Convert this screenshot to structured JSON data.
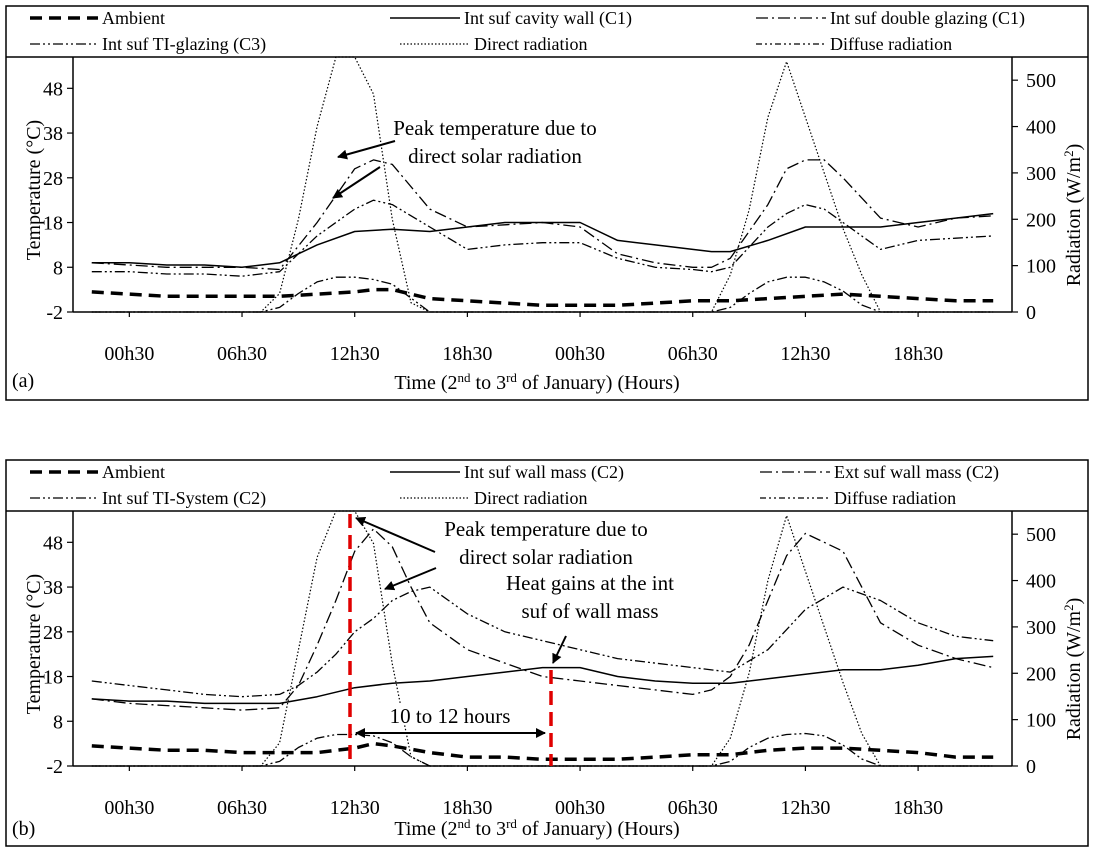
{
  "chart_data": [
    {
      "type": "line",
      "panel_label": "(a)",
      "xlabel_main": "Time (2",
      "xlabel_sup1": "nd",
      "xlabel_mid": " to 3",
      "xlabel_sup2": "rd",
      "xlabel_end": " of January) (Hours)",
      "ylabel_left": "Temperature (°C)",
      "ylabel_right_main": "Radiation (W/m",
      "ylabel_right_sup": "2",
      "ylabel_right_end": ")",
      "x_ticks": [
        "00h30",
        "06h30",
        "12h30",
        "18h30",
        "00h30",
        "06h30",
        "12h30",
        "18h30"
      ],
      "x_tick_hours": [
        0,
        6,
        12,
        18,
        24,
        30,
        36,
        42
      ],
      "xlim": [
        -3,
        47
      ],
      "y_left_ticks": [
        -2,
        8,
        18,
        28,
        38,
        48
      ],
      "y_left_lim": [
        -2,
        55
      ],
      "y_right_ticks": [
        0,
        100,
        200,
        300,
        400,
        500
      ],
      "y_right_lim": [
        0,
        550
      ],
      "legend": [
        "Ambient",
        "Int suf cavity wall (C1)",
        "Int suf double glazing (C1)",
        "Int suf TI-glazing (C3)",
        "Direct radiation",
        "Diffuse radiation"
      ],
      "annotations": {
        "line1": "Peak temperature due to",
        "line2": "direct solar radiation"
      },
      "series": [
        {
          "name": "Ambient",
          "axis": "left",
          "style": "thickdash",
          "x": [
            -2,
            0,
            2,
            4,
            6,
            8,
            10,
            12,
            13,
            14,
            15,
            16,
            18,
            20,
            22,
            24,
            26,
            28,
            30,
            32,
            34,
            36,
            38,
            40,
            42,
            44,
            46
          ],
          "y": [
            2.5,
            2,
            1.5,
            1.5,
            1.5,
            1.5,
            2,
            2.5,
            3,
            3,
            2,
            1,
            0.5,
            0,
            -0.5,
            -0.5,
            -0.5,
            0,
            0.5,
            0.5,
            1,
            1.5,
            2,
            1.5,
            1,
            0.5,
            0.5
          ]
        },
        {
          "name": "Int suf cavity wall (C1)",
          "axis": "left",
          "style": "solid",
          "x": [
            -2,
            0,
            2,
            4,
            6,
            8,
            10,
            12,
            14,
            16,
            18,
            20,
            22,
            24,
            26,
            28,
            30,
            31,
            32,
            34,
            36,
            38,
            40,
            42,
            44,
            46
          ],
          "y": [
            9,
            9,
            8.5,
            8.5,
            8,
            9,
            13,
            16,
            16.5,
            16,
            17,
            18,
            18,
            18,
            14,
            13,
            12,
            11.5,
            11.5,
            14,
            17,
            17,
            17,
            18,
            19,
            20
          ]
        },
        {
          "name": "Int suf double glazing (C1)",
          "axis": "left",
          "style": "dashdot",
          "x": [
            -2,
            0,
            2,
            4,
            6,
            8,
            10,
            12,
            13,
            14,
            16,
            18,
            20,
            22,
            24,
            26,
            28,
            30,
            31,
            32,
            34,
            35,
            36,
            37,
            38,
            40,
            42,
            44,
            46
          ],
          "y": [
            9,
            8.5,
            8,
            8,
            8,
            7.5,
            18,
            30,
            32,
            31,
            21,
            17,
            17.5,
            18,
            17,
            11,
            9,
            8,
            8,
            10,
            22,
            30,
            32,
            32,
            28,
            19,
            17,
            19,
            19.5
          ]
        },
        {
          "name": "Int suf TI-glazing (C3)",
          "axis": "left",
          "style": "dashdotdot",
          "x": [
            -2,
            0,
            2,
            4,
            6,
            8,
            10,
            12,
            13,
            14,
            16,
            18,
            20,
            22,
            24,
            26,
            28,
            30,
            31,
            32,
            34,
            35,
            36,
            37,
            38,
            40,
            42,
            44,
            46
          ],
          "y": [
            7,
            7,
            6.5,
            6.5,
            6,
            7,
            15,
            21,
            23,
            22,
            17,
            12,
            13,
            13.5,
            13.5,
            10,
            8,
            7.5,
            7,
            8,
            17,
            20,
            22,
            21,
            18,
            12,
            14,
            14.5,
            15
          ]
        },
        {
          "name": "Direct radiation",
          "axis": "right",
          "style": "dotted",
          "x": [
            -2,
            6,
            7,
            8,
            9,
            10,
            11,
            12,
            13,
            14,
            15,
            16,
            30,
            31,
            32,
            33,
            34,
            35,
            36,
            37,
            38,
            39,
            40,
            41,
            46
          ],
          "y": [
            0,
            0,
            0,
            40,
            200,
            400,
            550,
            550,
            470,
            200,
            20,
            0,
            0,
            0,
            80,
            220,
            420,
            540,
            420,
            300,
            180,
            80,
            0,
            0,
            0
          ]
        },
        {
          "name": "Diffuse radiation",
          "axis": "right",
          "style": "dashdotdot",
          "x": [
            -2,
            6,
            7,
            8,
            9,
            10,
            11,
            12,
            13,
            14,
            15,
            16,
            30,
            31,
            32,
            33,
            34,
            35,
            36,
            37,
            38,
            39,
            40,
            41,
            46
          ],
          "y": [
            0,
            0,
            0,
            10,
            40,
            65,
            75,
            75,
            70,
            60,
            30,
            0,
            0,
            0,
            10,
            40,
            65,
            75,
            75,
            65,
            45,
            15,
            0,
            0,
            0
          ]
        }
      ]
    },
    {
      "type": "line",
      "panel_label": "(b)",
      "xlabel_main": "Time (2",
      "xlabel_sup1": "nd",
      "xlabel_mid": " to 3",
      "xlabel_sup2": "rd",
      "xlabel_end": " of January) (Hours)",
      "ylabel_left": "Temperature (°C)",
      "ylabel_right_main": "Radiation (W/m",
      "ylabel_right_sup": "2",
      "ylabel_right_end": ")",
      "x_ticks": [
        "00h30",
        "06h30",
        "12h30",
        "18h30",
        "00h30",
        "06h30",
        "12h30",
        "18h30"
      ],
      "x_tick_hours": [
        0,
        6,
        12,
        18,
        24,
        30,
        36,
        42
      ],
      "xlim": [
        -3,
        47
      ],
      "y_left_ticks": [
        -2,
        8,
        18,
        28,
        38,
        48
      ],
      "y_left_lim": [
        -2,
        55
      ],
      "y_right_ticks": [
        0,
        100,
        200,
        300,
        400,
        500
      ],
      "y_right_lim": [
        0,
        550
      ],
      "legend": [
        "Ambient",
        "Int suf wall mass (C2)",
        "Ext suf wall mass (C2)",
        "Int suf TI-System (C2)",
        "Direct radiation",
        "Diffuse radiation"
      ],
      "annotations": {
        "peak_line1": "Peak temperature due to",
        "peak_line2": "direct solar radiation",
        "gain_line1": "Heat gains at the int",
        "gain_line2": "suf of wall mass",
        "interval": "10 to 12 hours",
        "interval_start_hour": 13,
        "interval_end_hour": 24
      },
      "series": [
        {
          "name": "Ambient",
          "axis": "left",
          "style": "thickdash",
          "x": [
            -2,
            0,
            2,
            4,
            6,
            8,
            10,
            12,
            13,
            14,
            16,
            18,
            20,
            22,
            24,
            26,
            28,
            30,
            32,
            34,
            36,
            38,
            40,
            42,
            44,
            46
          ],
          "y": [
            2.5,
            2,
            1.5,
            1.5,
            1,
            1,
            1,
            2,
            3,
            2.5,
            1,
            0,
            0,
            -0.5,
            -0.5,
            -0.5,
            0,
            0.5,
            0.5,
            1.5,
            2,
            2,
            1.5,
            1,
            0,
            0
          ]
        },
        {
          "name": "Int suf wall mass (C2)",
          "axis": "left",
          "style": "solid",
          "x": [
            -2,
            0,
            2,
            4,
            6,
            8,
            10,
            12,
            14,
            16,
            18,
            20,
            22,
            24,
            26,
            28,
            30,
            32,
            34,
            36,
            38,
            40,
            42,
            44,
            46
          ],
          "y": [
            13,
            12.5,
            12.5,
            12,
            12,
            12,
            13.5,
            15.5,
            16.5,
            17,
            18,
            19,
            20,
            20,
            18,
            17,
            16.5,
            16.5,
            17.5,
            18.5,
            19.5,
            19.5,
            20.5,
            22,
            22.5
          ]
        },
        {
          "name": "Ext suf wall mass (C2)",
          "axis": "left",
          "style": "dashdot",
          "x": [
            -2,
            0,
            2,
            4,
            6,
            8,
            9,
            10,
            11,
            12,
            13,
            14,
            15,
            16,
            18,
            20,
            22,
            24,
            26,
            28,
            30,
            31,
            32,
            33,
            34,
            35,
            36,
            37,
            38,
            40,
            42,
            44,
            46
          ],
          "y": [
            13,
            12,
            11.5,
            11,
            10.5,
            11,
            16,
            25,
            35,
            46,
            51,
            47,
            38,
            30,
            24,
            21,
            18,
            17,
            16,
            15,
            14,
            15,
            18,
            25,
            35,
            45,
            50,
            48,
            46,
            30,
            25,
            22,
            20
          ]
        },
        {
          "name": "Int suf TI-System (C2)",
          "axis": "left",
          "style": "dashdotdot",
          "x": [
            -2,
            0,
            2,
            4,
            6,
            8,
            9,
            10,
            11,
            12,
            13,
            14,
            15,
            16,
            18,
            20,
            22,
            24,
            26,
            28,
            30,
            32,
            34,
            36,
            38,
            40,
            42,
            44,
            46
          ],
          "y": [
            17,
            16,
            15,
            14,
            13.5,
            14,
            16,
            19,
            23,
            28,
            31,
            35,
            37,
            38,
            32,
            28,
            26,
            24,
            22,
            21,
            20,
            19,
            24,
            33,
            38,
            35,
            30,
            27,
            26
          ]
        },
        {
          "name": "Direct radiation",
          "axis": "right",
          "style": "dotted",
          "x": [
            -2,
            6,
            7,
            8,
            9,
            10,
            11,
            12,
            13,
            14,
            15,
            16,
            30,
            31,
            32,
            33,
            34,
            35,
            36,
            37,
            38,
            39,
            40,
            41,
            46
          ],
          "y": [
            0,
            0,
            0,
            50,
            250,
            450,
            550,
            550,
            480,
            220,
            20,
            0,
            0,
            0,
            60,
            200,
            400,
            540,
            420,
            300,
            180,
            70,
            0,
            0,
            0
          ]
        },
        {
          "name": "Diffuse radiation",
          "axis": "right",
          "style": "dashdotdot",
          "x": [
            -2,
            6,
            7,
            8,
            9,
            10,
            11,
            12,
            13,
            14,
            15,
            16,
            30,
            31,
            32,
            33,
            34,
            35,
            36,
            37,
            38,
            39,
            40,
            41,
            46
          ],
          "y": [
            0,
            0,
            0,
            10,
            40,
            60,
            68,
            68,
            65,
            50,
            20,
            0,
            0,
            0,
            10,
            40,
            60,
            68,
            70,
            65,
            45,
            15,
            0,
            0,
            0
          ]
        }
      ]
    }
  ]
}
